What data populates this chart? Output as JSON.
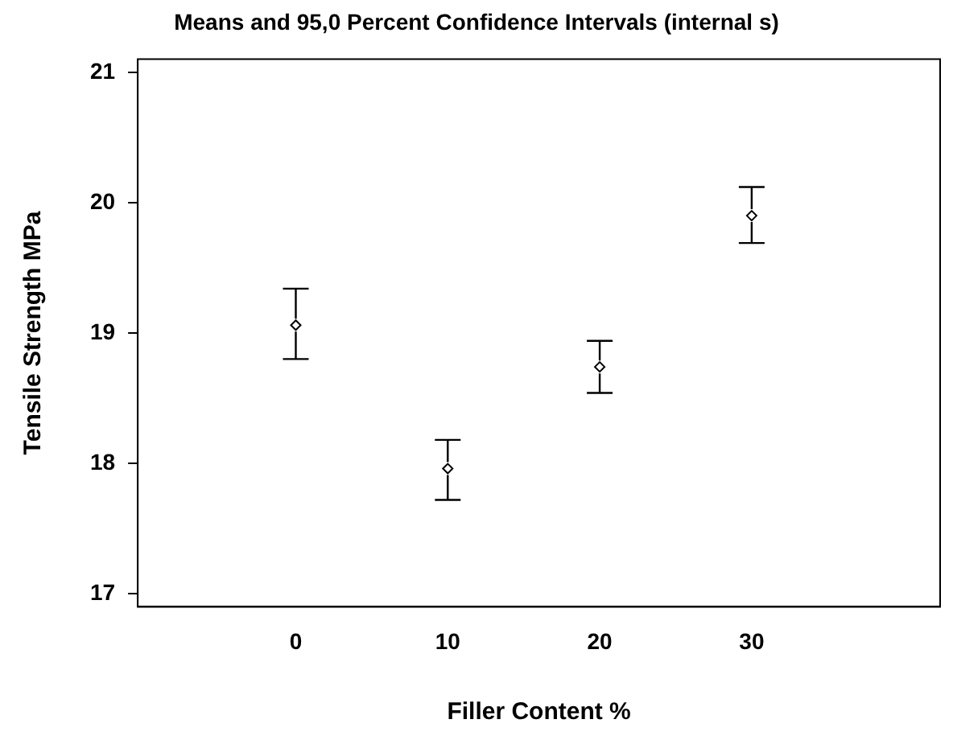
{
  "chart_data": {
    "type": "scatter",
    "title": "Means and 95,0 Percent Confidence Intervals (internal s)",
    "xlabel": "Filler Content %",
    "ylabel": "Tensile Strength MPa",
    "x": [
      0,
      10,
      20,
      30
    ],
    "values": [
      19.06,
      17.96,
      18.74,
      19.9
    ],
    "errors": [
      [
        18.8,
        19.34
      ],
      [
        17.72,
        18.18
      ],
      [
        18.54,
        18.94
      ],
      [
        19.69,
        20.12
      ]
    ],
    "color": "#000000",
    "marker": "diamond",
    "grid": false,
    "legend": false,
    "xlim": [
      -10.4,
      42.4
    ],
    "xticks": [
      0,
      10,
      20,
      30
    ],
    "ylim": [
      16.9,
      21.1
    ],
    "yticks": [
      17,
      18,
      19,
      20,
      21
    ]
  }
}
